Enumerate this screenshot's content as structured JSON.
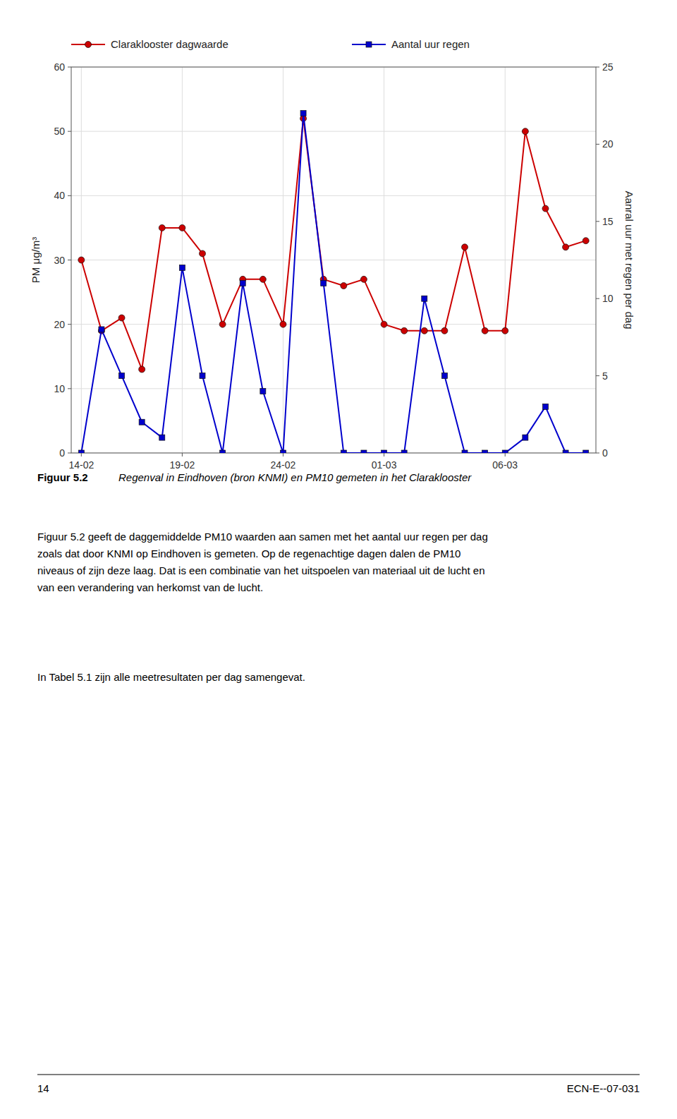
{
  "chart_data": {
    "type": "line",
    "categories": [
      "14-02",
      null,
      null,
      null,
      null,
      "19-02",
      null,
      null,
      null,
      null,
      "24-02",
      null,
      null,
      null,
      null,
      "01-03",
      null,
      null,
      null,
      null,
      null,
      "06-03",
      null,
      null,
      null,
      null
    ],
    "series": [
      {
        "name": "Claraklooster dagwaarde",
        "color": "#cc0000",
        "marker": "circle",
        "values": [
          30,
          19,
          21,
          13,
          35,
          35,
          31,
          20,
          27,
          27,
          20,
          52,
          27,
          26,
          27,
          20,
          19,
          19,
          19,
          32,
          19,
          19,
          50,
          38,
          32,
          33
        ]
      },
      {
        "name": "Aantal uur regen",
        "color": "#0000cc",
        "marker": "square",
        "axis": "y2",
        "values": [
          0,
          8,
          5,
          2,
          1,
          12,
          5,
          0,
          11,
          4,
          0,
          22,
          11,
          0,
          0,
          0,
          0,
          10,
          5,
          0,
          0,
          0,
          1,
          3,
          0,
          0
        ]
      }
    ],
    "y_label": "PM   μg/m³",
    "y2_label": "Aanral uur met regen per dag",
    "ylim": [
      0,
      60
    ],
    "yticks": [
      0,
      10,
      20,
      30,
      40,
      50,
      60
    ],
    "y2lim": [
      0,
      25
    ],
    "y2ticks": [
      0,
      5,
      10,
      15,
      20,
      25
    ],
    "grid": true,
    "legend": "top"
  },
  "caption_label": "Figuur 5.2",
  "caption": "Regenval in Eindhoven (bron KNMI) en PM10 gemeten in het Claraklooster",
  "paragraphs": [
    "Figuur 5.2 geeft de daggemiddelde PM10 waarden aan samen met het aantal uur regen per dag\nzoals dat door KNMI op Eindhoven is gemeten. Op de regenachtige dagen dalen de PM10\nniveaus of zijn deze laag. Dat is een combinatie van het uitspoelen van materiaal uit de lucht en\nvan een verandering van herkomst van de lucht.",
    "In Tabel 5.1 zijn alle meetresultaten per dag samengevat."
  ],
  "footer_left": "14",
  "footer_right": "ECN-E--07-031"
}
